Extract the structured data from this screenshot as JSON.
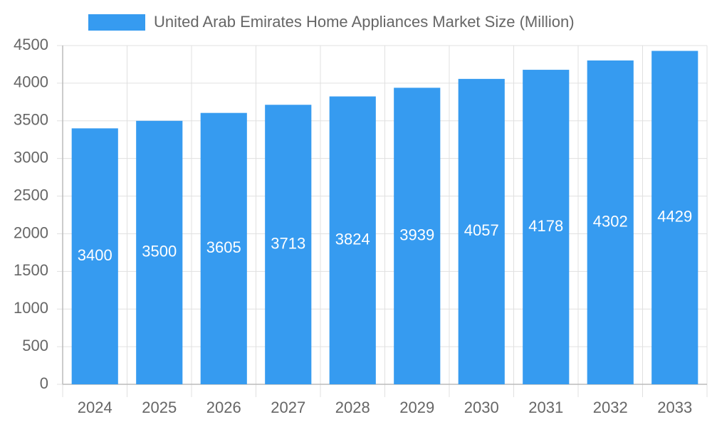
{
  "chart_data": {
    "type": "bar",
    "categories": [
      "2024",
      "2025",
      "2026",
      "2027",
      "2028",
      "2029",
      "2030",
      "2031",
      "2032",
      "2033"
    ],
    "series": [
      {
        "name": "United Arab Emirates Home Appliances Market Size (Million)",
        "color": "#369bf0",
        "values": [
          3400,
          3500,
          3605,
          3713,
          3824,
          3939,
          4057,
          4178,
          4302,
          4429
        ]
      }
    ],
    "ylim": [
      0,
      4500
    ],
    "yticks": [
      0,
      500,
      1000,
      1500,
      2000,
      2500,
      3000,
      3500,
      4000,
      4500
    ],
    "grid": true,
    "legend": "top"
  }
}
